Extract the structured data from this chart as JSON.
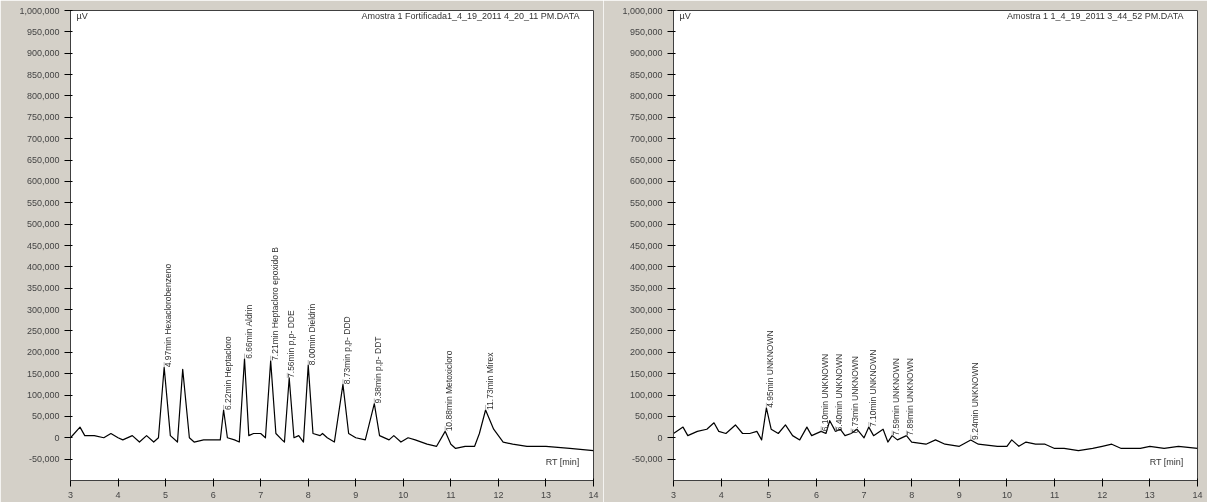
{
  "chart_data": [
    {
      "type": "line",
      "title": "Amostra 1 Fortificada1_4_19_2011 4_20_11 PM.DATA",
      "xlabel": "RT [min]",
      "ylabel": "µV",
      "x": [
        3.0,
        3.2,
        3.3,
        3.5,
        3.7,
        3.85,
        4.0,
        4.1,
        4.3,
        4.45,
        4.6,
        4.75,
        4.85,
        4.97,
        5.1,
        5.25,
        5.36,
        5.5,
        5.6,
        5.8,
        6.0,
        6.15,
        6.22,
        6.3,
        6.45,
        6.55,
        6.66,
        6.75,
        6.85,
        7.0,
        7.1,
        7.21,
        7.32,
        7.45,
        7.5,
        7.6,
        7.7,
        7.8,
        7.9,
        8.0,
        8.1,
        8.25,
        8.3,
        8.4,
        8.55,
        8.73,
        8.85,
        9.0,
        9.2,
        9.39,
        9.5,
        9.7,
        9.8,
        9.95,
        10.1,
        10.25,
        10.5,
        10.7,
        10.88,
        11.0,
        11.1,
        11.3,
        11.5,
        11.6,
        11.73,
        11.9,
        12.1,
        12.3,
        12.6,
        13.0,
        13.5,
        14.0
      ],
      "series": [
        {
          "color": "#000000",
          "values": [
            0,
            25000,
            5000,
            5000,
            0,
            10000,
            0,
            -5000,
            5000,
            -10000,
            5000,
            -10000,
            0,
            165000,
            5000,
            -10000,
            160000,
            0,
            -10000,
            -5000,
            -5000,
            -5000,
            65000,
            0,
            -5000,
            -10000,
            185000,
            5000,
            10000,
            10000,
            0,
            180000,
            10000,
            -5000,
            -10000,
            140000,
            0,
            5000,
            -10000,
            170000,
            10000,
            5000,
            10000,
            0,
            -10000,
            125000,
            10000,
            0,
            -5000,
            80000,
            5000,
            -5000,
            5000,
            -10000,
            0,
            -5000,
            -15000,
            -20000,
            15000,
            -15000,
            -25000,
            -20000,
            -20000,
            10000,
            65000,
            20000,
            -10000,
            -15000,
            -20000,
            -20000,
            -25000,
            -30000
          ]
        }
      ],
      "xlim": [
        3,
        14
      ],
      "xticks": [
        3,
        4,
        5,
        6,
        7,
        8,
        9,
        10,
        11,
        12,
        13,
        14
      ],
      "ylim": [
        -100000,
        1000000
      ],
      "yticks": [
        {
          "value": -50000,
          "label": "-50,000"
        },
        0,
        {
          "value": 50000,
          "label": "50,000"
        },
        {
          "value": 100000,
          "label": "100,000"
        },
        {
          "value": 150000,
          "label": "150,000"
        },
        {
          "value": 200000,
          "label": "200,000"
        },
        {
          "value": 250000,
          "label": "250,000"
        },
        {
          "value": 300000,
          "label": "300,000"
        },
        {
          "value": 350000,
          "label": "350,000"
        },
        {
          "value": 400000,
          "label": "400,000"
        },
        {
          "value": 450000,
          "label": "450,000"
        },
        {
          "value": 500000,
          "label": "500,000"
        },
        {
          "value": 550000,
          "label": "550,000"
        },
        {
          "value": 600000,
          "label": "600,000"
        },
        {
          "value": 650000,
          "label": "650,000"
        },
        {
          "value": 700000,
          "label": "700,000"
        },
        {
          "value": 750000,
          "label": "750,000"
        },
        {
          "value": 800000,
          "label": "800,000"
        },
        {
          "value": 850000,
          "label": "850,000"
        },
        {
          "value": 900000,
          "label": "900,000"
        },
        {
          "value": 950000,
          "label": "950,000"
        },
        {
          "value": 1000000,
          "label": "1,000,000"
        }
      ],
      "line_style": "solid",
      "annotations": [
        {
          "text": "4.97min Hexaclorobenzeno",
          "x": 4.97,
          "y": 165000
        },
        {
          "text": "6.22min Heptacloro",
          "x": 6.22,
          "y": 65000
        },
        {
          "text": "6.66min Aldrin",
          "x": 6.66,
          "y": 185000
        },
        {
          "text": "7.21min Heptacloro epoxido B",
          "x": 7.21,
          "y": 180000
        },
        {
          "text": "7.56min p,p- DDE",
          "x": 7.56,
          "y": 140000
        },
        {
          "text": "8.00min Dieldrin",
          "x": 8.0,
          "y": 170000
        },
        {
          "text": "8.73min p,p- DDD",
          "x": 8.73,
          "y": 125000
        },
        {
          "text": "9.38min p,p- DDT",
          "x": 9.39,
          "y": 80000
        },
        {
          "text": "10.88min Metoxicloro",
          "x": 10.88,
          "y": 15000
        },
        {
          "text": "11.73min Mirex",
          "x": 11.73,
          "y": 65000
        }
      ]
    },
    {
      "type": "line",
      "title": "Amostra 1 1_4_19_2011 3_44_52 PM.DATA",
      "xlabel": "RT [min]",
      "ylabel": "µV",
      "x": [
        3.0,
        3.2,
        3.3,
        3.5,
        3.7,
        3.85,
        3.95,
        4.1,
        4.3,
        4.45,
        4.6,
        4.75,
        4.85,
        4.95,
        5.05,
        5.2,
        5.35,
        5.5,
        5.65,
        5.8,
        5.9,
        6.1,
        6.2,
        6.28,
        6.4,
        6.5,
        6.6,
        6.73,
        6.85,
        7.0,
        7.1,
        7.2,
        7.4,
        7.5,
        7.59,
        7.7,
        7.89,
        8.0,
        8.3,
        8.5,
        8.7,
        9.0,
        9.24,
        9.4,
        9.8,
        10.0,
        10.1,
        10.25,
        10.4,
        10.6,
        10.8,
        11.0,
        11.2,
        11.5,
        11.8,
        12.0,
        12.2,
        12.4,
        12.8,
        13.0,
        13.3,
        13.6,
        14.0
      ],
      "series": [
        {
          "color": "#000000",
          "values": [
            10000,
            25000,
            5000,
            15000,
            20000,
            35000,
            15000,
            10000,
            30000,
            10000,
            10000,
            15000,
            -5000,
            70000,
            20000,
            10000,
            30000,
            5000,
            -5000,
            25000,
            5000,
            15000,
            10000,
            40000,
            15000,
            20000,
            5000,
            10000,
            20000,
            0,
            25000,
            5000,
            20000,
            -10000,
            5000,
            -5000,
            5000,
            -10000,
            -15000,
            -5000,
            -15000,
            -20000,
            -5000,
            -15000,
            -20000,
            -20000,
            -5000,
            -20000,
            -10000,
            -15000,
            -15000,
            -25000,
            -25000,
            -30000,
            -25000,
            -20000,
            -15000,
            -25000,
            -25000,
            -20000,
            -25000,
            -20000,
            -25000
          ]
        }
      ],
      "xlim": [
        3,
        14
      ],
      "xticks": [
        3,
        4,
        5,
        6,
        7,
        8,
        9,
        10,
        11,
        12,
        13,
        14
      ],
      "ylim": [
        -100000,
        1000000
      ],
      "yticks": [
        {
          "value": -50000,
          "label": "-50,000"
        },
        0,
        {
          "value": 50000,
          "label": "50,000"
        },
        {
          "value": 100000,
          "label": "100,000"
        },
        {
          "value": 150000,
          "label": "150,000"
        },
        {
          "value": 200000,
          "label": "200,000"
        },
        {
          "value": 250000,
          "label": "250,000"
        },
        {
          "value": 300000,
          "label": "300,000"
        },
        {
          "value": 350000,
          "label": "350,000"
        },
        {
          "value": 400000,
          "label": "400,000"
        },
        {
          "value": 450000,
          "label": "450,000"
        },
        {
          "value": 500000,
          "label": "500,000"
        },
        {
          "value": 550000,
          "label": "550,000"
        },
        {
          "value": 600000,
          "label": "600,000"
        },
        {
          "value": 650000,
          "label": "650,000"
        },
        {
          "value": 700000,
          "label": "700,000"
        },
        {
          "value": 750000,
          "label": "750,000"
        },
        {
          "value": 800000,
          "label": "800,000"
        },
        {
          "value": 850000,
          "label": "850,000"
        },
        {
          "value": 900000,
          "label": "900,000"
        },
        {
          "value": 950000,
          "label": "950,000"
        },
        {
          "value": 1000000,
          "label": "1,000,000"
        }
      ],
      "line_style": "solid",
      "annotations": [
        {
          "text": "4.95min UNKNOWN",
          "x": 4.95,
          "y": 70000
        },
        {
          "text": "6.10min UNKNOWN",
          "x": 6.1,
          "y": 15000
        },
        {
          "text": "6.40min UNKNOWN",
          "x": 6.4,
          "y": 15000
        },
        {
          "text": "6.73min UNKNOWN",
          "x": 6.73,
          "y": 10000
        },
        {
          "text": "7.10min UNKNOWN",
          "x": 7.1,
          "y": 25000
        },
        {
          "text": "7.59min UNKNOWN",
          "x": 7.59,
          "y": 5000
        },
        {
          "text": "7.89min UNKNOWN",
          "x": 7.89,
          "y": 5000
        },
        {
          "text": "9.24min UNKNOWN",
          "x": 9.24,
          "y": -5000
        }
      ]
    }
  ]
}
